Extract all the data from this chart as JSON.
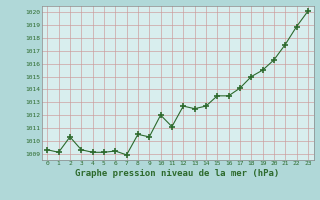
{
  "x": [
    0,
    1,
    2,
    3,
    4,
    5,
    6,
    7,
    8,
    9,
    10,
    11,
    12,
    13,
    14,
    15,
    16,
    17,
    18,
    19,
    20,
    21,
    22,
    23
  ],
  "y": [
    1009.3,
    1009.1,
    1010.3,
    1009.3,
    1009.1,
    1009.1,
    1009.2,
    1008.9,
    1010.5,
    1010.3,
    1012.0,
    1011.1,
    1012.7,
    1012.5,
    1012.7,
    1013.5,
    1013.5,
    1014.1,
    1015.0,
    1015.5,
    1016.3,
    1017.5,
    1018.9,
    1020.1
  ],
  "line_color": "#2d6a2d",
  "marker": "+",
  "marker_size": 4,
  "bg_color": "#b0d8d8",
  "plot_bg_color": "#d8eeee",
  "grid_color": "#cc9999",
  "xlabel": "Graphe pression niveau de la mer (hPa)",
  "xlabel_color": "#2d6a2d",
  "tick_color": "#2d6a2d",
  "ylim": [
    1008.5,
    1020.5
  ],
  "xlim": [
    -0.5,
    23.5
  ],
  "yticks": [
    1009,
    1010,
    1011,
    1012,
    1013,
    1014,
    1015,
    1016,
    1017,
    1018,
    1019,
    1020
  ],
  "xticks": [
    0,
    1,
    2,
    3,
    4,
    5,
    6,
    7,
    8,
    9,
    10,
    11,
    12,
    13,
    14,
    15,
    16,
    17,
    18,
    19,
    20,
    21,
    22,
    23
  ],
  "xtick_labels": [
    "0",
    "1",
    "2",
    "3",
    "4",
    "5",
    "6",
    "7",
    "8",
    "9",
    "10",
    "11",
    "12",
    "13",
    "14",
    "15",
    "16",
    "17",
    "18",
    "19",
    "20",
    "21",
    "22",
    "23"
  ]
}
